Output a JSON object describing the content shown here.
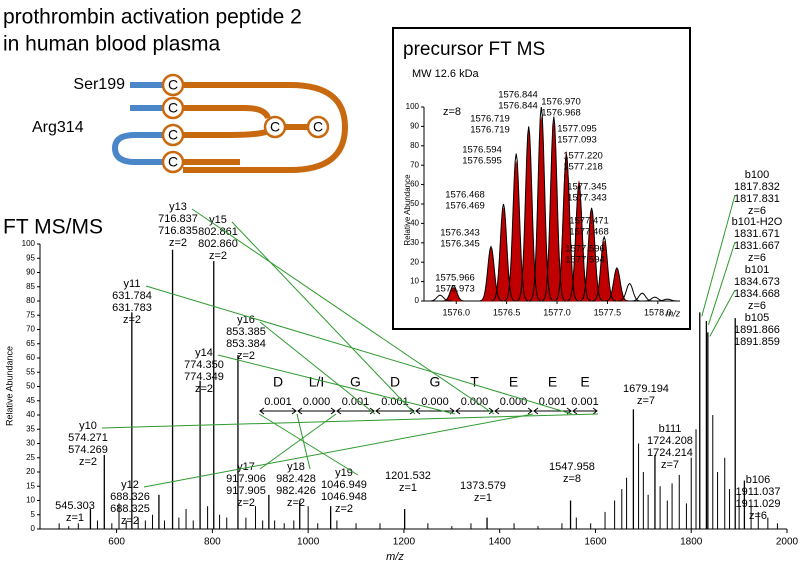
{
  "diagram": {
    "title_lines": [
      "prothrombin activation peptide 2",
      "in human blood plasma"
    ],
    "labels": [
      "Ser199",
      "Arg314"
    ],
    "nodes": [
      "C",
      "C",
      "C",
      "C",
      "C",
      "C"
    ]
  },
  "sequence": {
    "residues": [
      "D",
      "L/I",
      "G",
      "D",
      "G",
      "T",
      "E",
      "E",
      "E"
    ],
    "errors": [
      "0.001",
      "0.000",
      "0.001",
      "0.001",
      "0.000",
      "0.000",
      "0.000",
      "0.001",
      "0.001"
    ]
  },
  "chart_data": [
    {
      "type": "stem",
      "title": "FT MS/MS",
      "x_label": "m/z",
      "y_label": "Relative Abundance",
      "xlim": [
        440,
        2000
      ],
      "xticks": [
        600,
        800,
        1000,
        1200,
        1400,
        1600,
        1800,
        2000
      ],
      "ylim": [
        0,
        100
      ],
      "yticks": [
        0,
        5,
        10,
        15,
        20,
        25,
        30,
        35,
        40,
        45,
        50,
        55,
        60,
        65,
        70,
        75,
        80,
        85,
        90,
        95,
        100
      ],
      "color": "#000000",
      "label_color": "#e00000",
      "link_color": "#2e9a2e",
      "annotated_peaks": [
        {
          "x": 545.303,
          "y": 7,
          "charge": "z=1"
        },
        {
          "x": 574.269,
          "y": 26,
          "ion": "y10",
          "calc": "574.271",
          "charge": "z=2"
        },
        {
          "x": 631.783,
          "y": 76,
          "ion": "y11",
          "calc": "631.784",
          "charge": "z=2"
        },
        {
          "x": 688.325,
          "y": 12,
          "ion": "y12",
          "calc": "688.326",
          "charge": "z=2"
        },
        {
          "x": 716.835,
          "y": 98,
          "ion": "y13",
          "calc": "716.837",
          "charge": "z=2"
        },
        {
          "x": 774.349,
          "y": 52,
          "ion": "y14",
          "calc": "774.350",
          "charge": "z=2"
        },
        {
          "x": 802.86,
          "x_label": "802.860",
          "y": 94,
          "ion": "y15",
          "calc": "802.861",
          "charge": "z=2"
        },
        {
          "x": 853.384,
          "y": 61,
          "ion": "y16",
          "calc": "853.385",
          "charge": "z=2"
        },
        {
          "x": 917.905,
          "y": 12,
          "ion": "y17",
          "calc": "917.906",
          "charge": "z=2"
        },
        {
          "x": 982.426,
          "y": 10,
          "ion": "y18",
          "calc": "982.428",
          "charge": "z=2"
        },
        {
          "x": 1046.948,
          "y": 8,
          "ion": "y19",
          "calc": "1046.949",
          "charge": "z=2"
        },
        {
          "x": 1201.532,
          "y": 7,
          "charge": "z=1"
        },
        {
          "x": 1373.579,
          "y": 4,
          "charge": "z=1"
        },
        {
          "x": 1547.958,
          "y": 10,
          "charge": "z=8"
        },
        {
          "x": 1679.194,
          "y": 42,
          "charge": "z=7"
        },
        {
          "x": 1724.214,
          "y": 26,
          "ion": "b111",
          "calc": "1724.208",
          "charge": "z=7"
        },
        {
          "x": 1817.831,
          "y": 76,
          "ion": "b100",
          "calc": "1817.832",
          "charge": "z=6"
        },
        {
          "x": 1831.667,
          "y": 73,
          "ion": "b101-H2O",
          "calc": "1831.671",
          "charge": "z=6"
        },
        {
          "x": 1834.668,
          "y": 69,
          "ion": "b101",
          "calc": "1834.673",
          "charge": "z=6"
        },
        {
          "x": 1891.859,
          "y": 74,
          "ion": "b105",
          "calc": "1891.866"
        },
        {
          "x": 1911.029,
          "y": 17,
          "ion": "b106",
          "calc": "1911.037",
          "charge": "z=6"
        }
      ],
      "other_peaks": {
        "x": [
          480,
          500,
          520,
          560,
          590,
          605,
          620,
          645,
          660,
          675,
          700,
          730,
          745,
          760,
          790,
          815,
          830,
          870,
          890,
          905,
          930,
          950,
          970,
          1000,
          1020,
          1060,
          1100,
          1150,
          1250,
          1300,
          1340,
          1430,
          1480,
          1530,
          1560,
          1590,
          1620,
          1640,
          1655,
          1665,
          1690,
          1700,
          1710,
          1735,
          1750,
          1760,
          1775,
          1790,
          1800,
          1810,
          1845,
          1855,
          1870,
          1880,
          1900,
          1925,
          1940,
          1960,
          1980
        ],
        "y": [
          2,
          1,
          2,
          3,
          2,
          9,
          3,
          4,
          3,
          5,
          3,
          4,
          7,
          3,
          8,
          5,
          4,
          4,
          8,
          3,
          3,
          2,
          3,
          8,
          2,
          3,
          2,
          2,
          2,
          1,
          2,
          2,
          1,
          2,
          4,
          2,
          6,
          10,
          14,
          18,
          30,
          20,
          12,
          15,
          10,
          16,
          19,
          9,
          25,
          35,
          40,
          20,
          25,
          14,
          12,
          8,
          6,
          4,
          2
        ]
      }
    },
    {
      "type": "profile",
      "title": "precursor FT MS",
      "subtitle": "MW 12.6 kDa",
      "annotation": "z=8",
      "x_label": "m/z",
      "y_label": "Relative Abundance",
      "xlim": [
        1575.68,
        1578.22
      ],
      "xticks": [
        {
          "value": 1576,
          "label": "1576.0"
        },
        1576.5,
        {
          "value": 1577,
          "label": "1577.0"
        },
        1577.5,
        {
          "value": 1578,
          "label": "1578.0"
        }
      ],
      "ylim": [
        0,
        100
      ],
      "yticks": [
        0,
        10,
        20,
        30,
        40,
        50,
        60,
        70,
        80,
        90,
        100
      ],
      "observed": {
        "color": "#000000",
        "x": [
          1575.973,
          1576.345,
          1576.469,
          1576.595,
          1576.719,
          1576.844,
          1576.968,
          1577.093,
          1577.218,
          1577.343,
          1577.468,
          1577.594
        ],
        "values": [
          8,
          28,
          50,
          76,
          90,
          100,
          95,
          75,
          60,
          48,
          33,
          17
        ]
      },
      "theoretical": {
        "color": "#c00000",
        "x_labels": [
          "1575.966",
          "1576.343",
          "1576.468",
          "1576.594",
          "1576.719",
          "1576.844",
          "1576.970",
          "1577.095",
          "1577.220",
          "1577.345",
          "1577.471",
          "1577.596"
        ],
        "values": [
          7,
          27,
          48,
          72,
          88,
          95,
          92,
          77,
          62,
          47,
          31,
          17
        ]
      },
      "other": {
        "x": [
          1575.84,
          1577.72,
          1577.845,
          1577.97,
          1578.095
        ],
        "values": [
          3,
          9,
          4,
          2,
          1
        ]
      }
    }
  ]
}
